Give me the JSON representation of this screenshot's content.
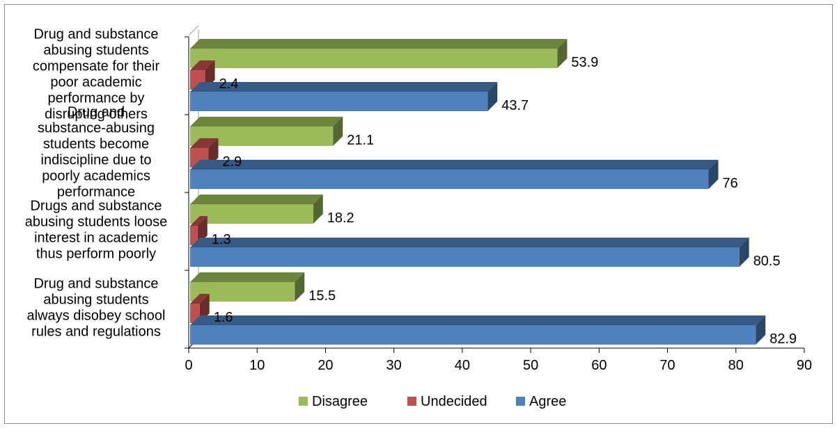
{
  "chart_data": {
    "type": "bar",
    "orientation": "horizontal",
    "style": "3d-clustered",
    "categories": [
      "Drug and substance abusing students compensate for their poor academic performance by disrupting others",
      "Drug and substance-abusing students become indiscipline due to poorly academics performance",
      "Drugs and substance abusing students loose interest in academic thus perform poorly",
      "Drug and substance abusing students always disobey school rules and regulations"
    ],
    "series": [
      {
        "name": "Disagree",
        "color": "#9BBB59",
        "values": [
          53.9,
          21.1,
          18.2,
          15.5
        ]
      },
      {
        "name": "Undecided",
        "color": "#C0504D",
        "values": [
          2.4,
          2.9,
          1.3,
          1.6
        ]
      },
      {
        "name": "Agree",
        "color": "#4F81BD",
        "values": [
          43.7,
          76,
          80.5,
          82.9
        ]
      }
    ],
    "xlim": [
      0,
      90
    ],
    "xticks": [
      "0",
      "10",
      "20",
      "30",
      "40",
      "50",
      "60",
      "70",
      "80",
      "90"
    ],
    "legend_position": "bottom",
    "gridlines": false
  }
}
